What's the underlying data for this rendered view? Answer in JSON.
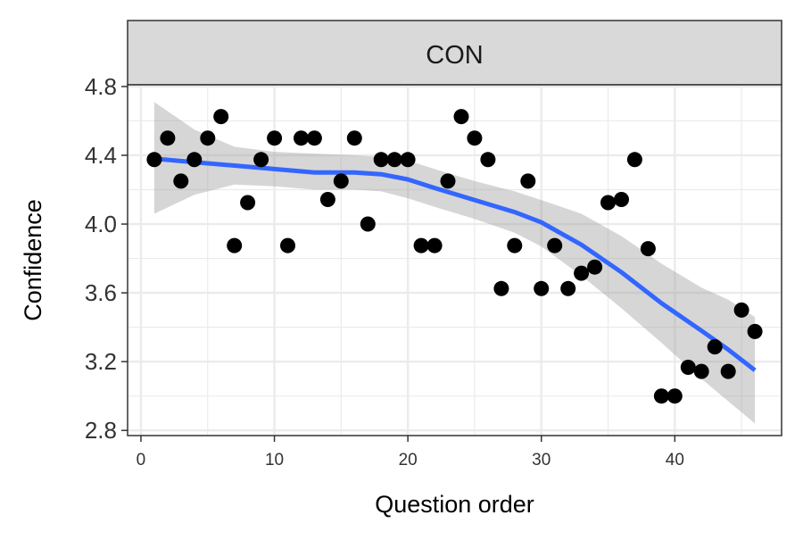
{
  "facet": {
    "label": "CON"
  },
  "colors": {
    "points": "#000000",
    "smooth_line": "#3366FF",
    "ribbon": "#999999",
    "strip_fill": "#d9d9d9",
    "grid": "#ebebeb",
    "panel_border": "#333333"
  },
  "chart_data": {
    "type": "scatter",
    "title": "",
    "xlabel": "Question order",
    "ylabel": "Confidence",
    "xlim": [
      -1,
      48
    ],
    "ylim": [
      2.77,
      4.81
    ],
    "x_ticks": [
      0,
      10,
      20,
      30,
      40
    ],
    "x_tick_labels": [
      "0",
      "10",
      "20",
      "30",
      "40"
    ],
    "y_ticks": [
      2.8,
      3.2,
      3.6,
      4.0,
      4.4,
      4.8
    ],
    "y_tick_labels": [
      "2.8",
      "3.2",
      "3.6",
      "4.0",
      "4.4",
      "4.8"
    ],
    "grid": true,
    "points": [
      [
        1,
        4.375
      ],
      [
        2,
        4.5
      ],
      [
        3,
        4.25
      ],
      [
        4,
        4.375
      ],
      [
        5,
        4.5
      ],
      [
        6,
        4.625
      ],
      [
        7,
        3.875
      ],
      [
        8,
        4.125
      ],
      [
        9,
        4.375
      ],
      [
        10,
        4.5
      ],
      [
        11,
        3.875
      ],
      [
        12,
        4.5
      ],
      [
        13,
        4.5
      ],
      [
        14,
        4.143
      ],
      [
        15,
        4.25
      ],
      [
        16,
        4.5
      ],
      [
        17,
        4.0
      ],
      [
        18,
        4.375
      ],
      [
        19,
        4.375
      ],
      [
        20,
        4.375
      ],
      [
        21,
        3.875
      ],
      [
        22,
        3.875
      ],
      [
        23,
        4.25
      ],
      [
        24,
        4.625
      ],
      [
        25,
        4.5
      ],
      [
        26,
        4.375
      ],
      [
        27,
        3.625
      ],
      [
        28,
        3.875
      ],
      [
        29,
        4.25
      ],
      [
        30,
        3.625
      ],
      [
        31,
        3.875
      ],
      [
        32,
        3.625
      ],
      [
        33,
        3.714
      ],
      [
        34,
        3.75
      ],
      [
        35,
        4.125
      ],
      [
        36,
        4.143
      ],
      [
        37,
        4.375
      ],
      [
        38,
        3.857
      ],
      [
        39,
        3.0
      ],
      [
        40,
        3.0
      ],
      [
        41,
        3.167
      ],
      [
        42,
        3.143
      ],
      [
        43,
        3.286
      ],
      [
        44,
        3.143
      ],
      [
        45,
        3.5
      ],
      [
        46,
        3.375
      ]
    ],
    "smooth": {
      "method": "loess",
      "x": [
        1,
        4,
        7,
        10,
        13,
        16,
        18,
        20,
        22,
        25,
        28,
        30,
        33,
        36,
        39,
        42,
        44,
        46
      ],
      "fit": [
        4.38,
        4.36,
        4.34,
        4.32,
        4.3,
        4.3,
        4.29,
        4.26,
        4.21,
        4.14,
        4.07,
        4.01,
        3.88,
        3.72,
        3.54,
        3.38,
        3.27,
        3.15
      ],
      "lower": [
        4.06,
        4.17,
        4.23,
        4.22,
        4.2,
        4.2,
        4.19,
        4.15,
        4.1,
        4.03,
        3.95,
        3.87,
        3.7,
        3.51,
        3.31,
        3.1,
        2.97,
        2.84
      ],
      "upper": [
        4.71,
        4.55,
        4.45,
        4.42,
        4.41,
        4.4,
        4.39,
        4.37,
        4.32,
        4.25,
        4.19,
        4.14,
        4.06,
        3.93,
        3.77,
        3.63,
        3.56,
        3.46
      ]
    }
  }
}
